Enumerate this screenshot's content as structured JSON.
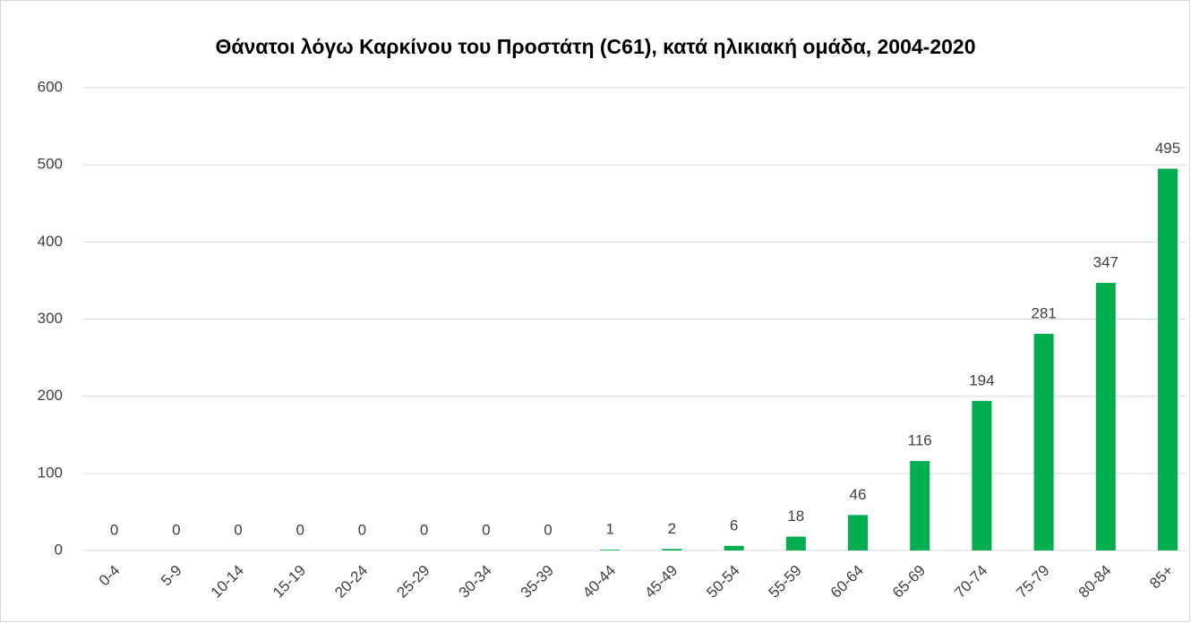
{
  "chart_data": {
    "type": "bar",
    "title": "Θάνατοι λόγω Καρκίνου του Προστάτη (C61), κατά ηλικιακή ομάδα, 2004-2020",
    "categories": [
      "0-4",
      "5-9",
      "10-14",
      "15-19",
      "20-24",
      "25-29",
      "30-34",
      "35-39",
      "40-44",
      "45-49",
      "50-54",
      "55-59",
      "60-64",
      "65-69",
      "70-74",
      "75-79",
      "80-84",
      "85+"
    ],
    "values": [
      0,
      0,
      0,
      0,
      0,
      0,
      0,
      0,
      1,
      2,
      6,
      18,
      46,
      116,
      194,
      281,
      347,
      495
    ],
    "color": "#00b050",
    "ylim": [
      0,
      600
    ],
    "yticks": [
      0,
      100,
      200,
      300,
      400,
      500,
      600
    ],
    "grid": true
  }
}
